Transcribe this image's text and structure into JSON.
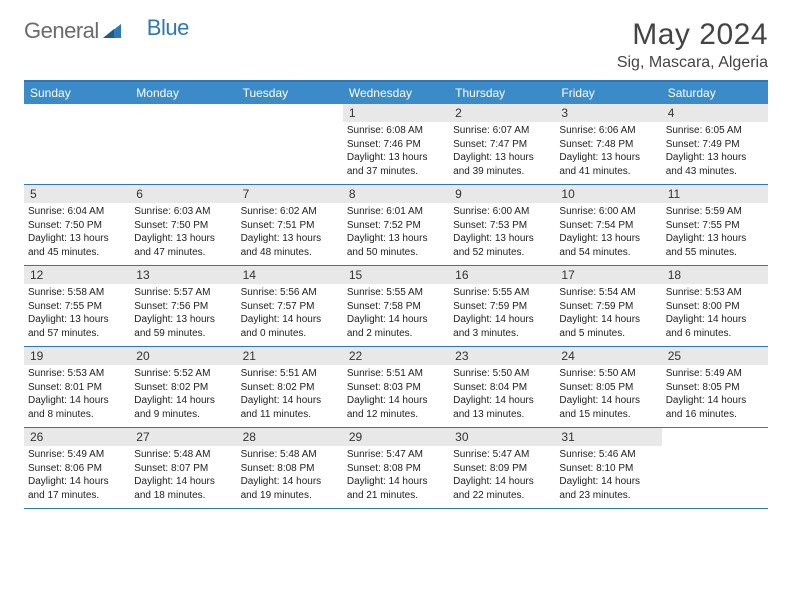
{
  "logo": {
    "general": "General",
    "blue": "Blue"
  },
  "title": "May 2024",
  "location": "Sig, Mascara, Algeria",
  "styling": {
    "header_bg": "#3b8bc9",
    "border_color": "#2f78b8",
    "daynum_bg": "#e8e8e8",
    "body_font_size": 10,
    "header_font_size": 12,
    "title_font_size": 30,
    "location_font_size": 16,
    "page_bg": "#ffffff",
    "text_color": "#222222",
    "logo_gray": "#6b6b6b",
    "logo_blue": "#2f78b8"
  },
  "day_labels": [
    "Sunday",
    "Monday",
    "Tuesday",
    "Wednesday",
    "Thursday",
    "Friday",
    "Saturday"
  ],
  "weeks": [
    [
      {
        "empty": true
      },
      {
        "empty": true
      },
      {
        "empty": true
      },
      {
        "day": "1",
        "sunrise": "Sunrise: 6:08 AM",
        "sunset": "Sunset: 7:46 PM",
        "daylight1": "Daylight: 13 hours",
        "daylight2": "and 37 minutes."
      },
      {
        "day": "2",
        "sunrise": "Sunrise: 6:07 AM",
        "sunset": "Sunset: 7:47 PM",
        "daylight1": "Daylight: 13 hours",
        "daylight2": "and 39 minutes."
      },
      {
        "day": "3",
        "sunrise": "Sunrise: 6:06 AM",
        "sunset": "Sunset: 7:48 PM",
        "daylight1": "Daylight: 13 hours",
        "daylight2": "and 41 minutes."
      },
      {
        "day": "4",
        "sunrise": "Sunrise: 6:05 AM",
        "sunset": "Sunset: 7:49 PM",
        "daylight1": "Daylight: 13 hours",
        "daylight2": "and 43 minutes."
      }
    ],
    [
      {
        "day": "5",
        "sunrise": "Sunrise: 6:04 AM",
        "sunset": "Sunset: 7:50 PM",
        "daylight1": "Daylight: 13 hours",
        "daylight2": "and 45 minutes."
      },
      {
        "day": "6",
        "sunrise": "Sunrise: 6:03 AM",
        "sunset": "Sunset: 7:50 PM",
        "daylight1": "Daylight: 13 hours",
        "daylight2": "and 47 minutes."
      },
      {
        "day": "7",
        "sunrise": "Sunrise: 6:02 AM",
        "sunset": "Sunset: 7:51 PM",
        "daylight1": "Daylight: 13 hours",
        "daylight2": "and 48 minutes."
      },
      {
        "day": "8",
        "sunrise": "Sunrise: 6:01 AM",
        "sunset": "Sunset: 7:52 PM",
        "daylight1": "Daylight: 13 hours",
        "daylight2": "and 50 minutes."
      },
      {
        "day": "9",
        "sunrise": "Sunrise: 6:00 AM",
        "sunset": "Sunset: 7:53 PM",
        "daylight1": "Daylight: 13 hours",
        "daylight2": "and 52 minutes."
      },
      {
        "day": "10",
        "sunrise": "Sunrise: 6:00 AM",
        "sunset": "Sunset: 7:54 PM",
        "daylight1": "Daylight: 13 hours",
        "daylight2": "and 54 minutes."
      },
      {
        "day": "11",
        "sunrise": "Sunrise: 5:59 AM",
        "sunset": "Sunset: 7:55 PM",
        "daylight1": "Daylight: 13 hours",
        "daylight2": "and 55 minutes."
      }
    ],
    [
      {
        "day": "12",
        "sunrise": "Sunrise: 5:58 AM",
        "sunset": "Sunset: 7:55 PM",
        "daylight1": "Daylight: 13 hours",
        "daylight2": "and 57 minutes."
      },
      {
        "day": "13",
        "sunrise": "Sunrise: 5:57 AM",
        "sunset": "Sunset: 7:56 PM",
        "daylight1": "Daylight: 13 hours",
        "daylight2": "and 59 minutes."
      },
      {
        "day": "14",
        "sunrise": "Sunrise: 5:56 AM",
        "sunset": "Sunset: 7:57 PM",
        "daylight1": "Daylight: 14 hours",
        "daylight2": "and 0 minutes."
      },
      {
        "day": "15",
        "sunrise": "Sunrise: 5:55 AM",
        "sunset": "Sunset: 7:58 PM",
        "daylight1": "Daylight: 14 hours",
        "daylight2": "and 2 minutes."
      },
      {
        "day": "16",
        "sunrise": "Sunrise: 5:55 AM",
        "sunset": "Sunset: 7:59 PM",
        "daylight1": "Daylight: 14 hours",
        "daylight2": "and 3 minutes."
      },
      {
        "day": "17",
        "sunrise": "Sunrise: 5:54 AM",
        "sunset": "Sunset: 7:59 PM",
        "daylight1": "Daylight: 14 hours",
        "daylight2": "and 5 minutes."
      },
      {
        "day": "18",
        "sunrise": "Sunrise: 5:53 AM",
        "sunset": "Sunset: 8:00 PM",
        "daylight1": "Daylight: 14 hours",
        "daylight2": "and 6 minutes."
      }
    ],
    [
      {
        "day": "19",
        "sunrise": "Sunrise: 5:53 AM",
        "sunset": "Sunset: 8:01 PM",
        "daylight1": "Daylight: 14 hours",
        "daylight2": "and 8 minutes."
      },
      {
        "day": "20",
        "sunrise": "Sunrise: 5:52 AM",
        "sunset": "Sunset: 8:02 PM",
        "daylight1": "Daylight: 14 hours",
        "daylight2": "and 9 minutes."
      },
      {
        "day": "21",
        "sunrise": "Sunrise: 5:51 AM",
        "sunset": "Sunset: 8:02 PM",
        "daylight1": "Daylight: 14 hours",
        "daylight2": "and 11 minutes."
      },
      {
        "day": "22",
        "sunrise": "Sunrise: 5:51 AM",
        "sunset": "Sunset: 8:03 PM",
        "daylight1": "Daylight: 14 hours",
        "daylight2": "and 12 minutes."
      },
      {
        "day": "23",
        "sunrise": "Sunrise: 5:50 AM",
        "sunset": "Sunset: 8:04 PM",
        "daylight1": "Daylight: 14 hours",
        "daylight2": "and 13 minutes."
      },
      {
        "day": "24",
        "sunrise": "Sunrise: 5:50 AM",
        "sunset": "Sunset: 8:05 PM",
        "daylight1": "Daylight: 14 hours",
        "daylight2": "and 15 minutes."
      },
      {
        "day": "25",
        "sunrise": "Sunrise: 5:49 AM",
        "sunset": "Sunset: 8:05 PM",
        "daylight1": "Daylight: 14 hours",
        "daylight2": "and 16 minutes."
      }
    ],
    [
      {
        "day": "26",
        "sunrise": "Sunrise: 5:49 AM",
        "sunset": "Sunset: 8:06 PM",
        "daylight1": "Daylight: 14 hours",
        "daylight2": "and 17 minutes."
      },
      {
        "day": "27",
        "sunrise": "Sunrise: 5:48 AM",
        "sunset": "Sunset: 8:07 PM",
        "daylight1": "Daylight: 14 hours",
        "daylight2": "and 18 minutes."
      },
      {
        "day": "28",
        "sunrise": "Sunrise: 5:48 AM",
        "sunset": "Sunset: 8:08 PM",
        "daylight1": "Daylight: 14 hours",
        "daylight2": "and 19 minutes."
      },
      {
        "day": "29",
        "sunrise": "Sunrise: 5:47 AM",
        "sunset": "Sunset: 8:08 PM",
        "daylight1": "Daylight: 14 hours",
        "daylight2": "and 21 minutes."
      },
      {
        "day": "30",
        "sunrise": "Sunrise: 5:47 AM",
        "sunset": "Sunset: 8:09 PM",
        "daylight1": "Daylight: 14 hours",
        "daylight2": "and 22 minutes."
      },
      {
        "day": "31",
        "sunrise": "Sunrise: 5:46 AM",
        "sunset": "Sunset: 8:10 PM",
        "daylight1": "Daylight: 14 hours",
        "daylight2": "and 23 minutes."
      },
      {
        "empty": true
      }
    ]
  ]
}
